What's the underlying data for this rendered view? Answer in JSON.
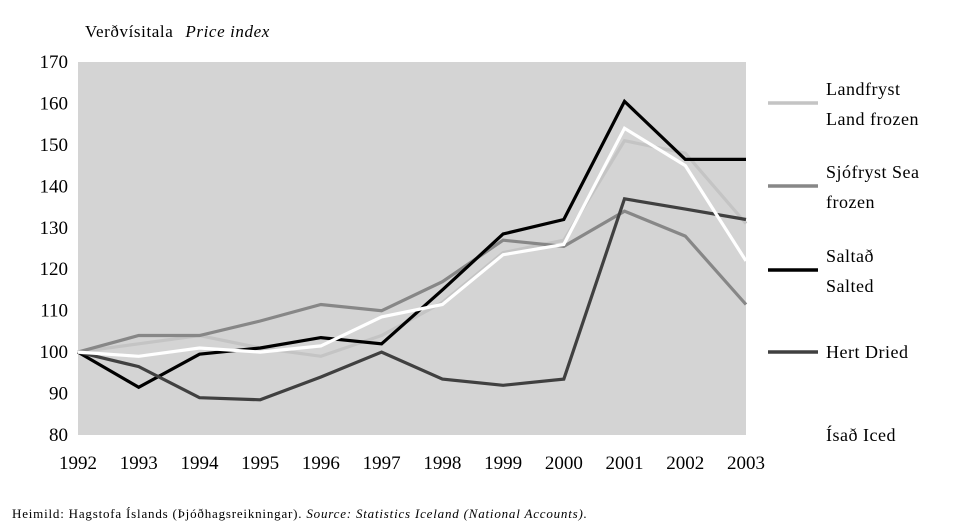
{
  "chart_data": {
    "type": "line",
    "ylabel": {
      "is": "Verðvísitala",
      "en": "Price index"
    },
    "x": [
      1992,
      1993,
      1994,
      1995,
      1996,
      1997,
      1998,
      1999,
      2000,
      2001,
      2002,
      2003
    ],
    "x_tick_labels": [
      "1992",
      "1993",
      "1994",
      "1995",
      "1996",
      "1997",
      "1998",
      "1999",
      "2000",
      "2001",
      "2002",
      "2003"
    ],
    "ylim": [
      80,
      170
    ],
    "y_ticks": [
      80,
      90,
      100,
      110,
      120,
      130,
      140,
      150,
      160,
      170
    ],
    "y_tick_labels": [
      "80",
      "90",
      "100",
      "110",
      "120",
      "130",
      "140",
      "150",
      "160",
      "170"
    ],
    "grid": false,
    "plot_background": "#d4d4d4",
    "legend_position": "right",
    "series": [
      {
        "name_lines": [
          "Landfryst",
          "Land frozen"
        ],
        "color": "#c4c4c4",
        "values": [
          100,
          102,
          104,
          101,
          99,
          104,
          112,
          124,
          127,
          151,
          148,
          131
        ]
      },
      {
        "name_lines": [
          "Sjófryst  Sea",
          "frozen"
        ],
        "color": "#878787",
        "values": [
          100,
          104,
          104,
          107.5,
          111.5,
          110,
          117,
          127,
          125.5,
          134,
          128,
          111.5
        ]
      },
      {
        "name_lines": [
          "Saltað",
          "Salted"
        ],
        "color": "#000000",
        "values": [
          100,
          91.5,
          99.5,
          101,
          103.5,
          102,
          115,
          128.5,
          132,
          160.5,
          146.5,
          146.5
        ]
      },
      {
        "name_lines": [
          "Hert  Dried"
        ],
        "color": "#404040",
        "values": [
          100,
          96.5,
          89,
          88.5,
          94,
          100,
          93.5,
          92,
          93.5,
          137,
          134.5,
          132
        ]
      },
      {
        "name_lines": [
          "Ísað  Iced"
        ],
        "color": "#ffffff",
        "values": [
          100,
          99,
          101,
          100,
          101.5,
          108.5,
          111.5,
          123.5,
          126,
          154,
          145,
          122
        ]
      }
    ]
  },
  "source": {
    "is": "Heimild: Hagstofa Íslands (Þjóðhagsreikningar). ",
    "en": "Source: Statistics Iceland (National Accounts)."
  }
}
